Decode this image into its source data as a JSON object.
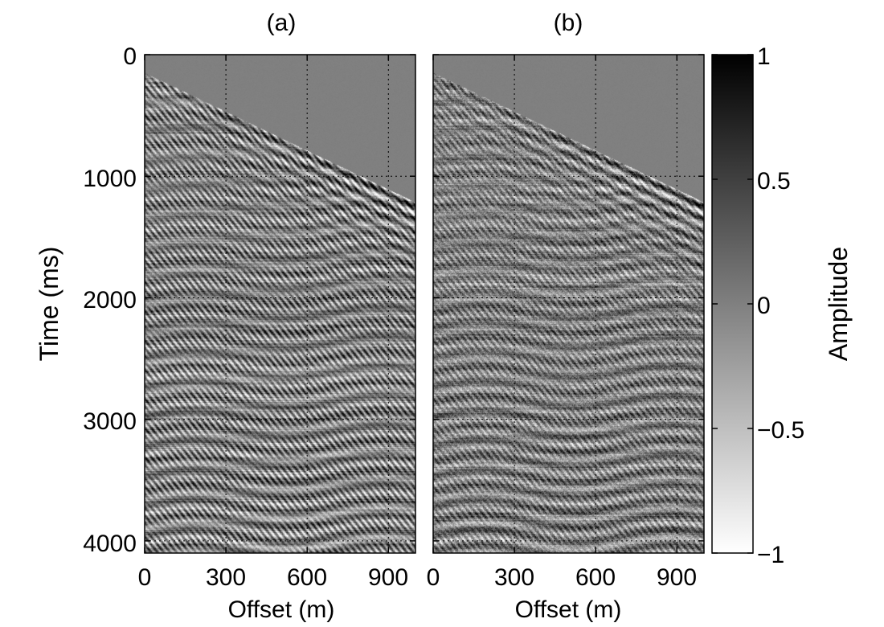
{
  "chart_data": {
    "type": "heatmap",
    "colormap": [
      "#ffffff",
      "#000000"
    ],
    "panels": [
      {
        "title": "(a)",
        "xlabel": "Offset (m)",
        "ylabel": "Time (ms)",
        "xlim": [
          0,
          1000
        ],
        "ylim": [
          4100,
          0
        ],
        "xticks": [
          "0",
          "300",
          "600",
          "900"
        ],
        "xtick_values": [
          0,
          300,
          600,
          900
        ],
        "yticks": [
          "0",
          "1000",
          "2000",
          "3000",
          "4000"
        ],
        "ytick_values": [
          0,
          1000,
          2000,
          3000,
          4000
        ],
        "grid": true,
        "grid_style": "dotted"
      },
      {
        "title": "(b)",
        "xlabel": "Offset (m)",
        "ylabel": "",
        "xlim": [
          0,
          1000
        ],
        "ylim": [
          4100,
          0
        ],
        "xticks": [
          "0",
          "300",
          "600",
          "900"
        ],
        "xtick_values": [
          0,
          300,
          600,
          900
        ],
        "yticks": [],
        "ytick_values": [
          0,
          1000,
          2000,
          3000,
          4000
        ],
        "grid": true,
        "grid_style": "dotted"
      }
    ],
    "colorbar": {
      "label": "Amplitude",
      "range": [
        -1,
        1
      ],
      "ticks": [
        "1",
        "0.5",
        "0",
        "−0.5",
        "−1"
      ],
      "tick_values": [
        1,
        0.5,
        0,
        -0.5,
        -1
      ]
    }
  }
}
